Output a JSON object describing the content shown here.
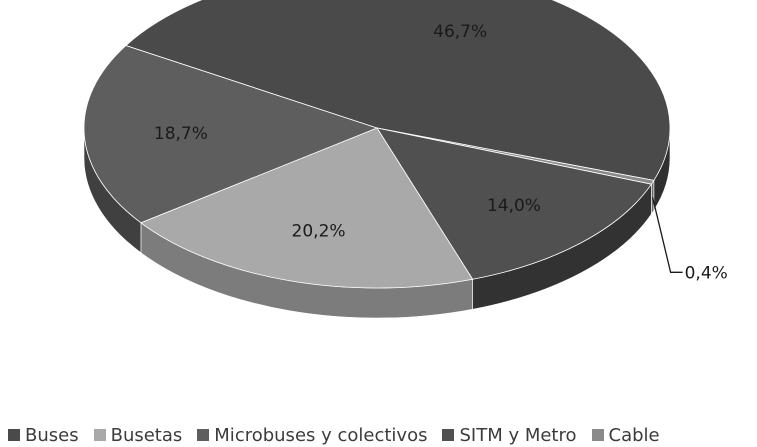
{
  "chart_data": {
    "type": "pie",
    "title": "",
    "style": "3d-exploded-none",
    "series": [
      {
        "name": "Buses",
        "value": 46.7,
        "label": "46,7%",
        "color": "#4a4a4a",
        "side_color": "#2f2f2f"
      },
      {
        "name": "Cable",
        "value": 0.4,
        "label": "0,4%",
        "color": "#8a8a8a",
        "side_color": "#6a6a6a"
      },
      {
        "name": "SITM y Metro",
        "value": 14.0,
        "label": "14,0%",
        "color": "#505050",
        "side_color": "#323232"
      },
      {
        "name": "Busetas",
        "value": 20.2,
        "label": "20,2%",
        "color": "#a9a9a9",
        "side_color": "#7c7c7c"
      },
      {
        "name": "Microbuses y colectivos",
        "value": 18.7,
        "label": "18,7%",
        "color": "#5e5e5e",
        "side_color": "#404040"
      }
    ],
    "legend": {
      "placement": "bottom",
      "entries": [
        {
          "label": "Buses",
          "color": "#4a4a4a"
        },
        {
          "label": "Busetas",
          "color": "#a9a9a9"
        },
        {
          "label": "Microbuses y colectivos",
          "color": "#5e5e5e"
        },
        {
          "label": "SITM y Metro",
          "color": "#505050"
        },
        {
          "label": "Cable",
          "color": "#8a8a8a"
        }
      ]
    }
  }
}
